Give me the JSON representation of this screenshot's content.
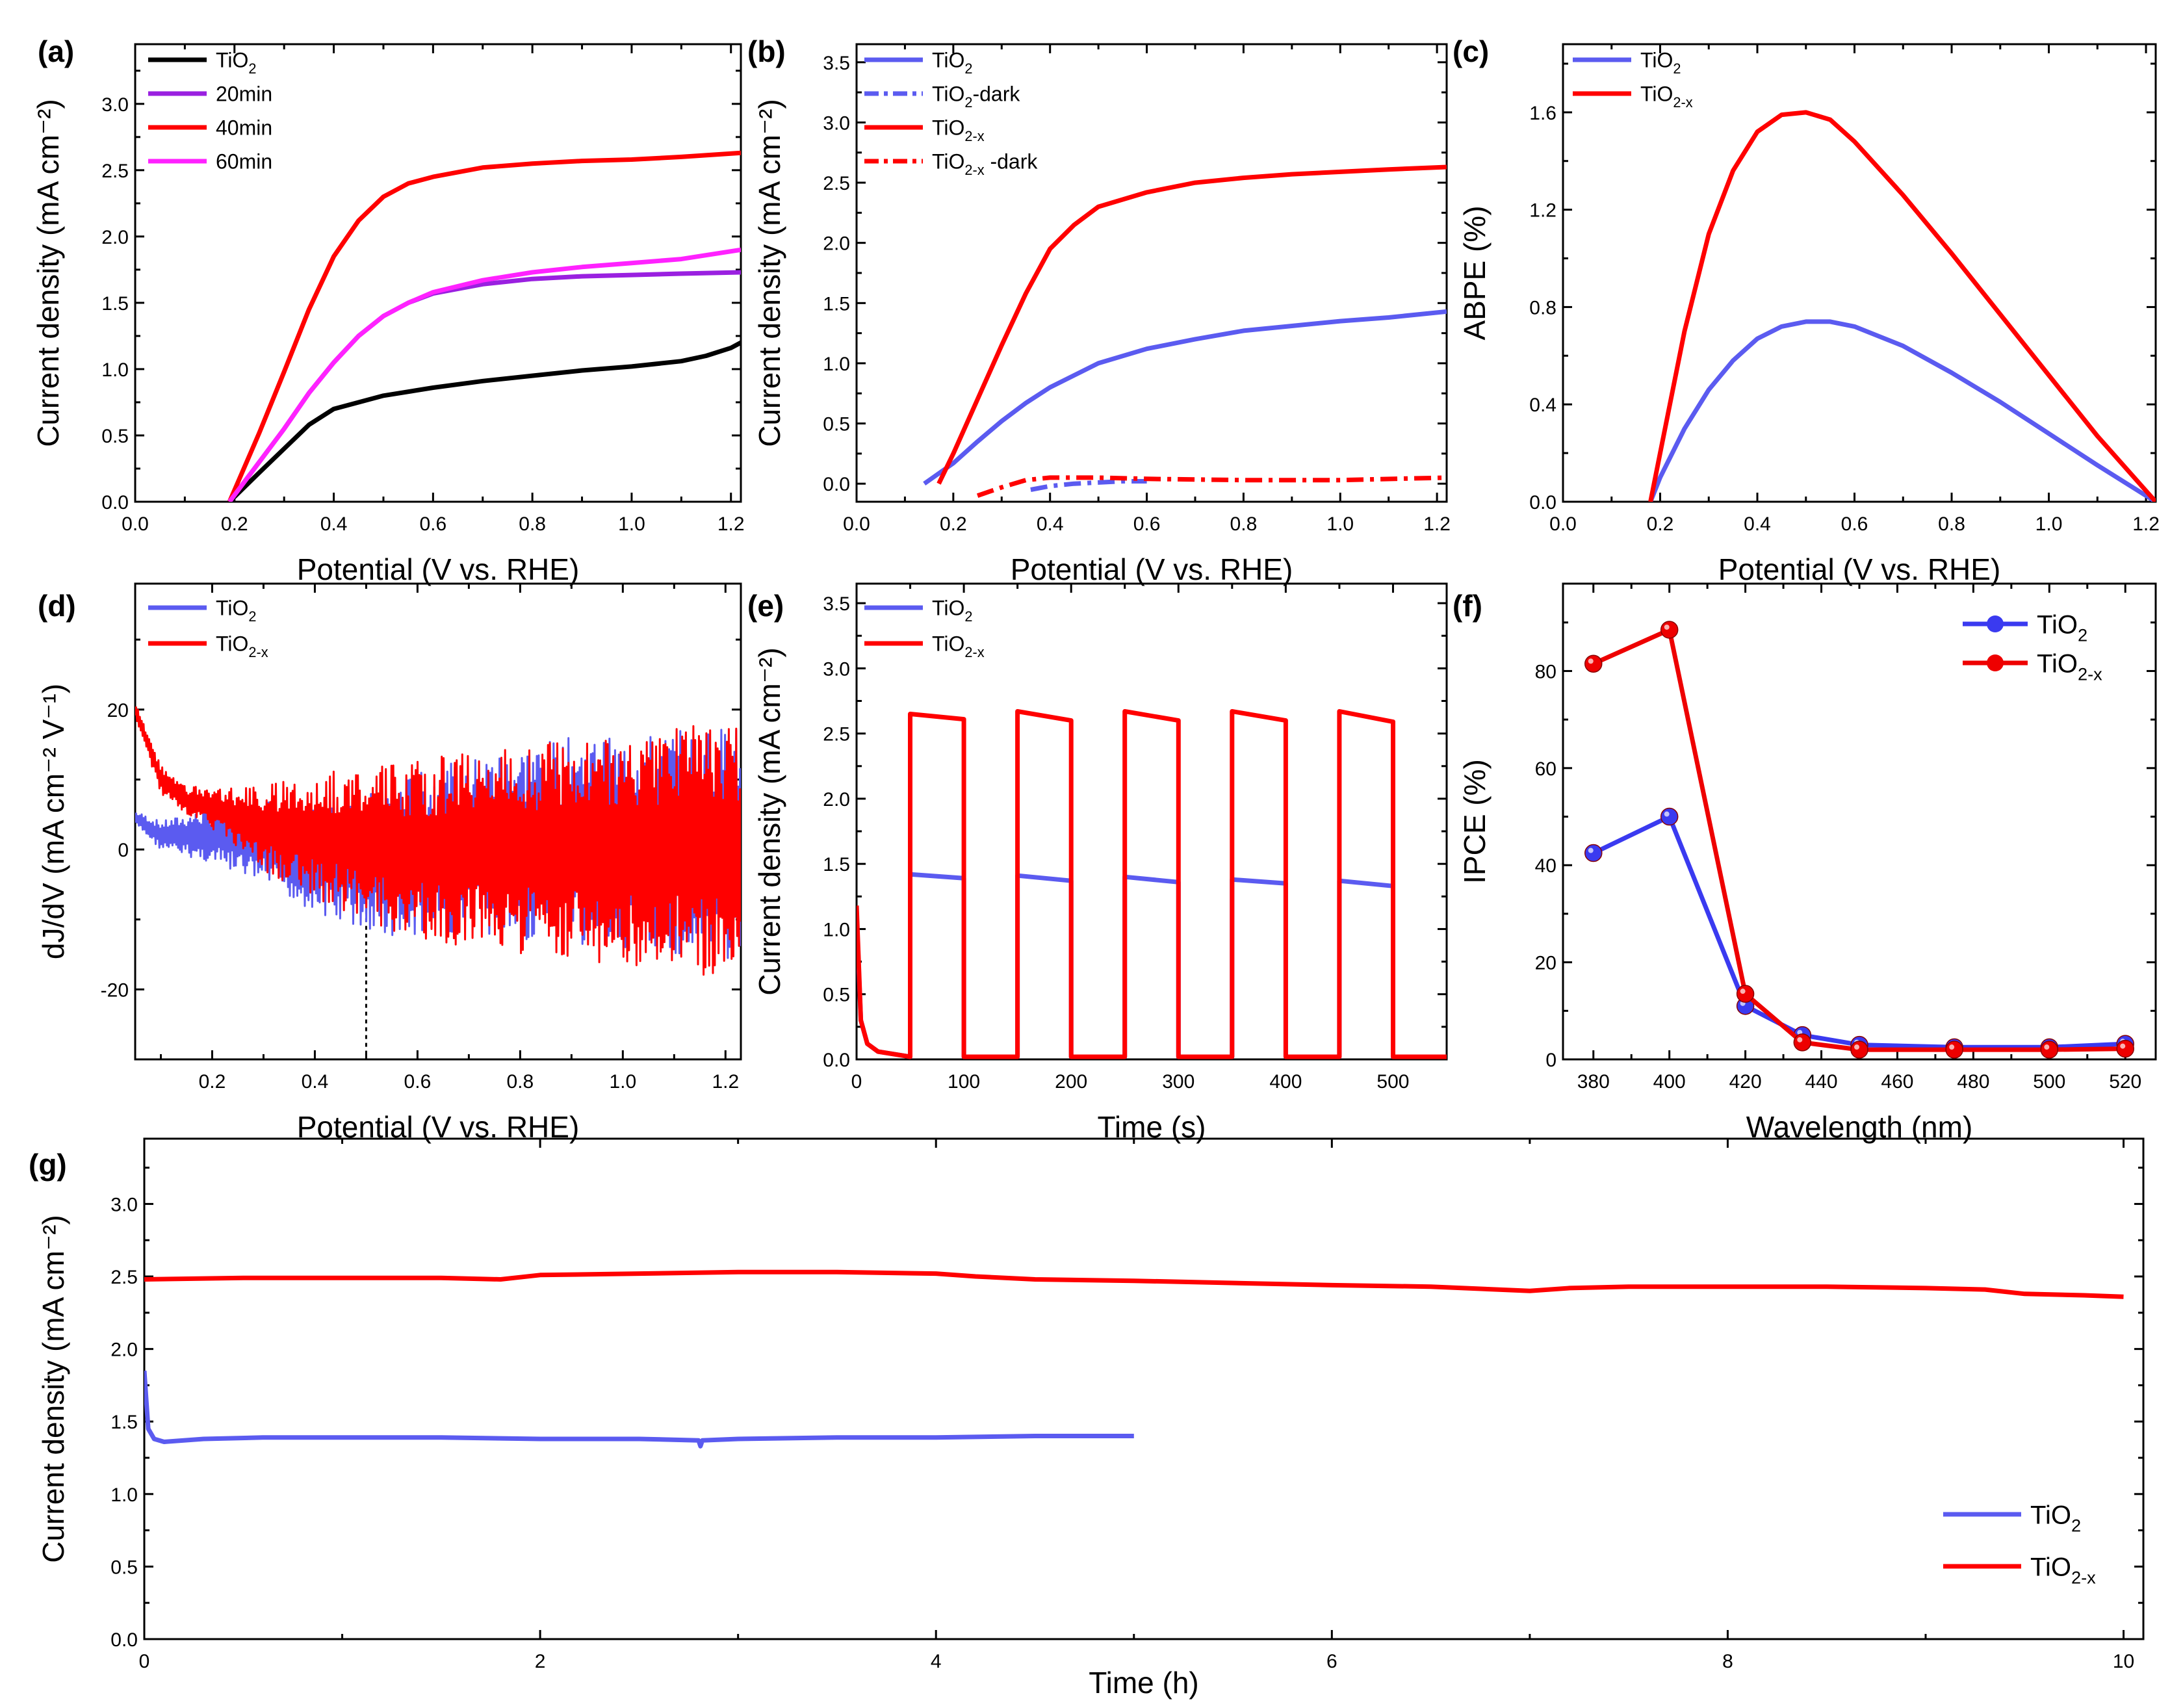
{
  "chart_data": [
    {
      "id": "a",
      "type": "line",
      "panel_label": "(a)",
      "xlabel": "Potential (V vs. RHE)",
      "ylabel": "Current density (mA cm⁻²)",
      "xlim": [
        0.0,
        1.22
      ],
      "ylim": [
        0.0,
        3.45
      ],
      "xticks": [
        0.0,
        0.2,
        0.4,
        0.6,
        0.8,
        1.0,
        1.2
      ],
      "xtick_labels": [
        "0.0",
        "0.2",
        "0.4",
        "0.6",
        "0.8",
        "1.0",
        "1.2"
      ],
      "yticks": [
        0.0,
        0.5,
        1.0,
        1.5,
        2.0,
        2.5,
        3.0
      ],
      "ytick_labels": [
        "0.0",
        "0.5",
        "1.0",
        "1.5",
        "2.0",
        "2.5",
        "3.0"
      ],
      "legend_position": "top-left",
      "series": [
        {
          "name": "TiO2",
          "label_main": "TiO",
          "label_sub": "2",
          "color": "#000000",
          "dash": "solid",
          "x": [
            0.19,
            0.25,
            0.3,
            0.35,
            0.4,
            0.5,
            0.6,
            0.7,
            0.8,
            0.9,
            1.0,
            1.1,
            1.15,
            1.2,
            1.22
          ],
          "y": [
            0,
            0.22,
            0.4,
            0.58,
            0.7,
            0.8,
            0.86,
            0.91,
            0.95,
            0.99,
            1.02,
            1.06,
            1.1,
            1.16,
            1.2
          ]
        },
        {
          "name": "20min",
          "label_main": "20min",
          "label_sub": "",
          "color": "#9A20E0",
          "dash": "solid",
          "x": [
            0.19,
            0.25,
            0.3,
            0.35,
            0.4,
            0.45,
            0.5,
            0.55,
            0.6,
            0.7,
            0.8,
            0.9,
            1.0,
            1.1,
            1.22
          ],
          "y": [
            0,
            0.3,
            0.55,
            0.82,
            1.05,
            1.25,
            1.4,
            1.5,
            1.57,
            1.64,
            1.68,
            1.7,
            1.71,
            1.72,
            1.73
          ]
        },
        {
          "name": "40min",
          "label_main": "40min",
          "label_sub": "",
          "color": "#FF0000",
          "dash": "solid",
          "x": [
            0.19,
            0.25,
            0.3,
            0.35,
            0.4,
            0.45,
            0.5,
            0.55,
            0.6,
            0.7,
            0.8,
            0.9,
            1.0,
            1.1,
            1.22
          ],
          "y": [
            0,
            0.52,
            0.98,
            1.45,
            1.85,
            2.12,
            2.3,
            2.4,
            2.45,
            2.52,
            2.55,
            2.57,
            2.58,
            2.6,
            2.63
          ]
        },
        {
          "name": "60min",
          "label_main": "60min",
          "label_sub": "",
          "color": "#FF22FF",
          "dash": "solid",
          "x": [
            0.19,
            0.25,
            0.3,
            0.35,
            0.4,
            0.45,
            0.5,
            0.55,
            0.6,
            0.7,
            0.8,
            0.9,
            1.0,
            1.1,
            1.22
          ],
          "y": [
            0,
            0.3,
            0.55,
            0.82,
            1.05,
            1.25,
            1.4,
            1.5,
            1.58,
            1.67,
            1.73,
            1.77,
            1.8,
            1.83,
            1.9
          ]
        }
      ]
    },
    {
      "id": "b",
      "type": "line",
      "panel_label": "(b)",
      "xlabel": "Potential (V vs. RHE)",
      "ylabel": "Current density (mA cm⁻²)",
      "xlim": [
        0.0,
        1.22
      ],
      "ylim": [
        -0.15,
        3.65
      ],
      "xticks": [
        0.0,
        0.2,
        0.4,
        0.6,
        0.8,
        1.0,
        1.2
      ],
      "xtick_labels": [
        "0.0",
        "0.2",
        "0.4",
        "0.6",
        "0.8",
        "1.0",
        "1.2"
      ],
      "yticks": [
        0.0,
        0.5,
        1.0,
        1.5,
        2.0,
        2.5,
        3.0,
        3.5
      ],
      "ytick_labels": [
        "0.0",
        "0.5",
        "1.0",
        "1.5",
        "2.0",
        "2.5",
        "3.0",
        "3.5"
      ],
      "legend_position": "top-left",
      "series": [
        {
          "name": "TiO2",
          "label_main": "TiO",
          "label_sub": "2",
          "label_suffix": "",
          "color": "#5B5BF0",
          "dash": "solid",
          "x": [
            0.14,
            0.2,
            0.25,
            0.3,
            0.35,
            0.4,
            0.5,
            0.6,
            0.7,
            0.8,
            0.9,
            1.0,
            1.1,
            1.22
          ],
          "y": [
            0,
            0.17,
            0.35,
            0.52,
            0.67,
            0.8,
            1.0,
            1.12,
            1.2,
            1.27,
            1.31,
            1.35,
            1.38,
            1.43
          ]
        },
        {
          "name": "TiO2-dark",
          "label_main": "TiO",
          "label_sub": "2",
          "label_suffix": "-dark",
          "color": "#5B5BF0",
          "dash": "dashdot",
          "x": [
            0.36,
            0.4,
            0.45,
            0.5,
            0.55,
            0.6
          ],
          "y": [
            -0.05,
            -0.02,
            0.0,
            0.01,
            0.02,
            0.02
          ]
        },
        {
          "name": "TiO2-x",
          "label_main": "TiO",
          "label_sub": "2-x",
          "label_suffix": "",
          "color": "#FF0000",
          "dash": "solid",
          "x": [
            0.17,
            0.2,
            0.25,
            0.3,
            0.35,
            0.4,
            0.45,
            0.5,
            0.6,
            0.7,
            0.8,
            0.9,
            1.0,
            1.1,
            1.22
          ],
          "y": [
            0,
            0.25,
            0.7,
            1.15,
            1.58,
            1.95,
            2.15,
            2.3,
            2.42,
            2.5,
            2.54,
            2.57,
            2.59,
            2.61,
            2.63
          ]
        },
        {
          "name": "TiO2-x -dark",
          "label_main": "TiO",
          "label_sub": "2-x",
          "label_suffix": " -dark",
          "color": "#FF0000",
          "dash": "dashdot",
          "x": [
            0.25,
            0.3,
            0.35,
            0.4,
            0.5,
            0.6,
            0.8,
            1.0,
            1.22
          ],
          "y": [
            -0.1,
            -0.03,
            0.03,
            0.05,
            0.05,
            0.04,
            0.03,
            0.03,
            0.05
          ]
        }
      ]
    },
    {
      "id": "c",
      "type": "line",
      "panel_label": "(c)",
      "xlabel": "Potential (V vs. RHE)",
      "ylabel": "ABPE (%)",
      "xlim": [
        0.0,
        1.22
      ],
      "ylim": [
        0.0,
        1.88
      ],
      "xticks": [
        0.0,
        0.2,
        0.4,
        0.6,
        0.8,
        1.0,
        1.2
      ],
      "xtick_labels": [
        "0.0",
        "0.2",
        "0.4",
        "0.6",
        "0.8",
        "1.0",
        "1.2"
      ],
      "yticks": [
        0.0,
        0.4,
        0.8,
        1.2,
        1.6
      ],
      "ytick_labels": [
        "0.0",
        "0.4",
        "0.8",
        "1.2",
        "1.6"
      ],
      "legend_position": "top-left",
      "series": [
        {
          "name": "TiO2",
          "label_main": "TiO",
          "label_sub": "2",
          "color": "#5B5BF0",
          "dash": "solid",
          "x": [
            0.18,
            0.2,
            0.25,
            0.3,
            0.35,
            0.4,
            0.45,
            0.5,
            0.55,
            0.6,
            0.7,
            0.8,
            0.9,
            1.0,
            1.1,
            1.22
          ],
          "y": [
            0,
            0.1,
            0.3,
            0.46,
            0.58,
            0.67,
            0.72,
            0.74,
            0.74,
            0.72,
            0.64,
            0.53,
            0.41,
            0.28,
            0.15,
            0
          ]
        },
        {
          "name": "TiO2-x",
          "label_main": "TiO",
          "label_sub": "2-x",
          "color": "#FF0000",
          "dash": "solid",
          "x": [
            0.18,
            0.2,
            0.25,
            0.3,
            0.35,
            0.4,
            0.45,
            0.5,
            0.55,
            0.6,
            0.7,
            0.8,
            0.9,
            1.0,
            1.1,
            1.22
          ],
          "y": [
            0,
            0.2,
            0.7,
            1.1,
            1.36,
            1.52,
            1.59,
            1.6,
            1.57,
            1.48,
            1.26,
            1.02,
            0.77,
            0.52,
            0.27,
            0
          ]
        }
      ]
    },
    {
      "id": "d",
      "type": "line",
      "panel_label": "(d)",
      "xlabel": "Potential (V vs. RHE)",
      "ylabel": "dJ/dV (mA cm⁻² V⁻¹)",
      "xlim": [
        0.05,
        1.23
      ],
      "ylim": [
        -30,
        38
      ],
      "xticks": [
        0.2,
        0.4,
        0.6,
        0.8,
        1.0,
        1.2
      ],
      "xtick_labels": [
        "0.2",
        "0.4",
        "0.6",
        "0.8",
        "1.0",
        "1.2"
      ],
      "yticks": [
        -20,
        0,
        20
      ],
      "ytick_labels": [
        "-20",
        "0",
        "20"
      ],
      "marker_line_x": 0.5,
      "legend_position": "top-left",
      "series": [
        {
          "name": "TiO2",
          "label_main": "TiO",
          "label_sub": "2",
          "color": "#5B5BF0",
          "dash": "solid",
          "envelope": {
            "x": [
              0.05,
              0.1,
              0.2,
              0.3,
              0.4,
              0.5,
              0.6,
              0.7,
              0.8,
              0.9,
              1.0,
              1.1,
              1.23
            ],
            "center": [
              4.5,
              2,
              2,
              1,
              -1,
              -2,
              -1,
              0,
              1,
              1,
              1,
              1,
              1
            ],
            "amp": [
              1,
              2,
              4,
              6,
              8,
              10,
              12,
              13,
              14,
              15,
              15,
              16,
              17
            ]
          }
        },
        {
          "name": "TiO2-x",
          "label_main": "TiO",
          "label_sub": "2-x",
          "color": "#FF0000",
          "dash": "solid",
          "envelope": {
            "x": [
              0.05,
              0.1,
              0.15,
              0.2,
              0.3,
              0.4,
              0.5,
              0.6,
              0.7,
              0.8,
              0.9,
              1.0,
              1.1,
              1.23
            ],
            "center": [
              20,
              10,
              7,
              6,
              3,
              2,
              1,
              0,
              0,
              0,
              0,
              0,
              0,
              0
            ],
            "amp": [
              1,
              2,
              2,
              3,
              6,
              9,
              11,
              13,
              14,
              15,
              16,
              17,
              18,
              19
            ]
          }
        }
      ]
    },
    {
      "id": "e",
      "type": "line",
      "panel_label": "(e)",
      "xlabel": "Time (s)",
      "ylabel": "Current density (mA cm⁻²)",
      "xlim": [
        0,
        550
      ],
      "ylim": [
        0.0,
        3.65
      ],
      "xticks": [
        0,
        100,
        200,
        300,
        400,
        500
      ],
      "xtick_labels": [
        "0",
        "100",
        "200",
        "300",
        "400",
        "500"
      ],
      "yticks": [
        0.0,
        0.5,
        1.0,
        1.5,
        2.0,
        2.5,
        3.0,
        3.5
      ],
      "ytick_labels": [
        "0.0",
        "0.5",
        "1.0",
        "1.5",
        "2.0",
        "2.5",
        "3.0",
        "3.5"
      ],
      "legend_position": "top-left",
      "series": [
        {
          "name": "TiO2",
          "label_main": "TiO",
          "label_sub": "2",
          "color": "#5B5BF0",
          "dash": "solid",
          "on_periods": [
            [
              50,
              100
            ],
            [
              150,
              200
            ],
            [
              250,
              300
            ],
            [
              350,
              400
            ],
            [
              450,
              500
            ]
          ],
          "on_start": [
            1.42,
            1.41,
            1.4,
            1.38,
            1.37
          ],
          "on_end": [
            1.39,
            1.37,
            1.36,
            1.35,
            1.33
          ],
          "off_level": 0.02,
          "initial_spike": 1.1
        },
        {
          "name": "TiO2-x",
          "label_main": "TiO",
          "label_sub": "2-x",
          "color": "#FF0000",
          "dash": "solid",
          "on_periods": [
            [
              50,
              100
            ],
            [
              150,
              200
            ],
            [
              250,
              300
            ],
            [
              350,
              400
            ],
            [
              450,
              500
            ]
          ],
          "on_start": [
            2.65,
            2.67,
            2.67,
            2.67,
            2.67
          ],
          "on_end": [
            2.61,
            2.6,
            2.6,
            2.6,
            2.59
          ],
          "off_level": 0.02,
          "initial_spike": 1.18
        }
      ]
    },
    {
      "id": "f",
      "type": "line",
      "panel_label": "(f)",
      "xlabel": "Wavelength (nm)",
      "ylabel": "IPCE (%)",
      "xlim": [
        372,
        528
      ],
      "ylim": [
        0,
        98
      ],
      "xticks": [
        380,
        400,
        420,
        440,
        460,
        480,
        500,
        520
      ],
      "xtick_labels": [
        "380",
        "400",
        "420",
        "440",
        "460",
        "480",
        "500",
        "520"
      ],
      "yticks": [
        0,
        20,
        40,
        60,
        80
      ],
      "ytick_labels": [
        "0",
        "20",
        "40",
        "60",
        "80"
      ],
      "legend_position": "top-right",
      "series": [
        {
          "name": "TiO2",
          "label_main": "TiO",
          "label_sub": "2",
          "color": "#3A3AF0",
          "marker": "circle",
          "x": [
            380,
            400,
            420,
            435,
            450,
            475,
            500,
            520
          ],
          "y": [
            42.5,
            50,
            11,
            5,
            3,
            2.5,
            2.5,
            3.2
          ]
        },
        {
          "name": "TiO2-x",
          "label_main": "TiO",
          "label_sub": "2-x",
          "color": "#EE0000",
          "marker": "circle",
          "x": [
            380,
            400,
            420,
            435,
            450,
            475,
            500,
            520
          ],
          "y": [
            81.5,
            88.5,
            13.5,
            3.5,
            2,
            2,
            2,
            2.2
          ]
        }
      ]
    },
    {
      "id": "g",
      "type": "line",
      "panel_label": "(g)",
      "xlabel": "Time (h)",
      "ylabel": "Current density (mA cm⁻²)",
      "xlim": [
        0,
        10.1
      ],
      "ylim": [
        0.0,
        3.45
      ],
      "xticks": [
        0,
        2,
        4,
        6,
        8,
        10
      ],
      "xtick_labels": [
        "0",
        "2",
        "4",
        "6",
        "8",
        "10"
      ],
      "yticks": [
        0.0,
        0.5,
        1.0,
        1.5,
        2.0,
        2.5,
        3.0
      ],
      "ytick_labels": [
        "0.0",
        "0.5",
        "1.0",
        "1.5",
        "2.0",
        "2.5",
        "3.0"
      ],
      "legend_position": "bottom-right",
      "series": [
        {
          "name": "TiO2",
          "label_main": "TiO",
          "label_sub": "2",
          "color": "#5B5BF0",
          "dash": "solid",
          "x": [
            0,
            0.02,
            0.05,
            0.1,
            0.3,
            0.6,
            1,
            1.5,
            2,
            2.5,
            2.8,
            2.81,
            2.82,
            3,
            3.5,
            4,
            4.5,
            5
          ],
          "y": [
            1.85,
            1.45,
            1.38,
            1.36,
            1.38,
            1.39,
            1.39,
            1.39,
            1.38,
            1.38,
            1.37,
            1.33,
            1.37,
            1.38,
            1.39,
            1.39,
            1.4,
            1.4
          ]
        },
        {
          "name": "TiO2-x",
          "label_main": "TiO",
          "label_sub": "2-x",
          "color": "#FF0000",
          "dash": "solid",
          "x": [
            0,
            0.5,
            1,
            1.5,
            1.8,
            2,
            2.5,
            3,
            3.5,
            4,
            4.2,
            4.5,
            5,
            6,
            6.5,
            7,
            7.2,
            7.5,
            8,
            8.5,
            9,
            9.3,
            9.5,
            9.8,
            10
          ],
          "y": [
            2.48,
            2.49,
            2.49,
            2.49,
            2.48,
            2.51,
            2.52,
            2.53,
            2.53,
            2.52,
            2.5,
            2.48,
            2.47,
            2.44,
            2.43,
            2.4,
            2.42,
            2.43,
            2.43,
            2.43,
            2.42,
            2.41,
            2.38,
            2.37,
            2.36
          ]
        }
      ]
    }
  ]
}
